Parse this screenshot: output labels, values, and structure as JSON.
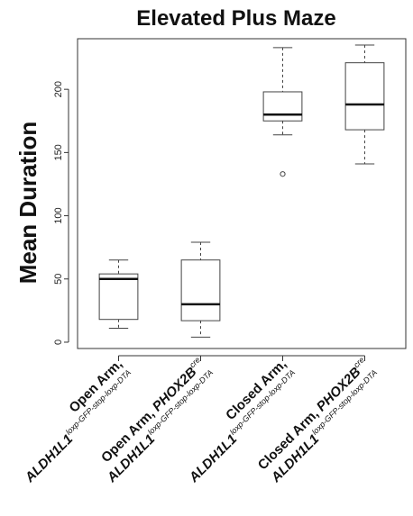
{
  "chart_data": {
    "type": "box",
    "title": "Elevated Plus Maze",
    "xlabel": "",
    "ylabel": "Mean Duration",
    "ylim": [
      -5,
      240
    ],
    "yticks": [
      0,
      50,
      100,
      150,
      200
    ],
    "grid": false,
    "categories": [
      {
        "line1": [
          {
            "t": "Open Arm,",
            "style": "normal"
          }
        ],
        "line2": [
          {
            "t": "ALDH1L1",
            "style": "gene"
          },
          {
            "t": "loxp-GFP-stop-loxp-DTA",
            "style": "sup"
          }
        ]
      },
      {
        "line1": [
          {
            "t": "Open Arm, ",
            "style": "normal"
          },
          {
            "t": "PHOX2B",
            "style": "gene"
          },
          {
            "t": "cre",
            "style": "sup"
          }
        ],
        "line2": [
          {
            "t": "ALDH1L1",
            "style": "gene"
          },
          {
            "t": "loxp-GFP-stop-loxp-DTA",
            "style": "sup"
          }
        ]
      },
      {
        "line1": [
          {
            "t": "Closed Arm,",
            "style": "normal"
          }
        ],
        "line2": [
          {
            "t": "ALDH1L1",
            "style": "gene"
          },
          {
            "t": "loxp-GFP-stop-loxp-DTA",
            "style": "sup"
          }
        ]
      },
      {
        "line1": [
          {
            "t": "Closed Arm, ",
            "style": "normal"
          },
          {
            "t": "PHOX2B",
            "style": "gene"
          },
          {
            "t": "cre",
            "style": "sup"
          }
        ],
        "line2": [
          {
            "t": "ALDH1L1",
            "style": "gene"
          },
          {
            "t": "loxp-GFP-stop-loxp-DTA",
            "style": "sup"
          }
        ]
      }
    ],
    "boxes": [
      {
        "whisker_low": 11,
        "q1": 18,
        "median": 50,
        "q3": 54,
        "whisker_high": 65,
        "outliers": []
      },
      {
        "whisker_low": 4,
        "q1": 17,
        "median": 30,
        "q3": 65,
        "whisker_high": 79,
        "outliers": []
      },
      {
        "whisker_low": 164,
        "q1": 175,
        "median": 180,
        "q3": 198,
        "whisker_high": 233,
        "outliers": [
          133
        ]
      },
      {
        "whisker_low": 141,
        "q1": 168,
        "median": 188,
        "q3": 221,
        "whisker_high": 235,
        "outliers": []
      }
    ]
  }
}
